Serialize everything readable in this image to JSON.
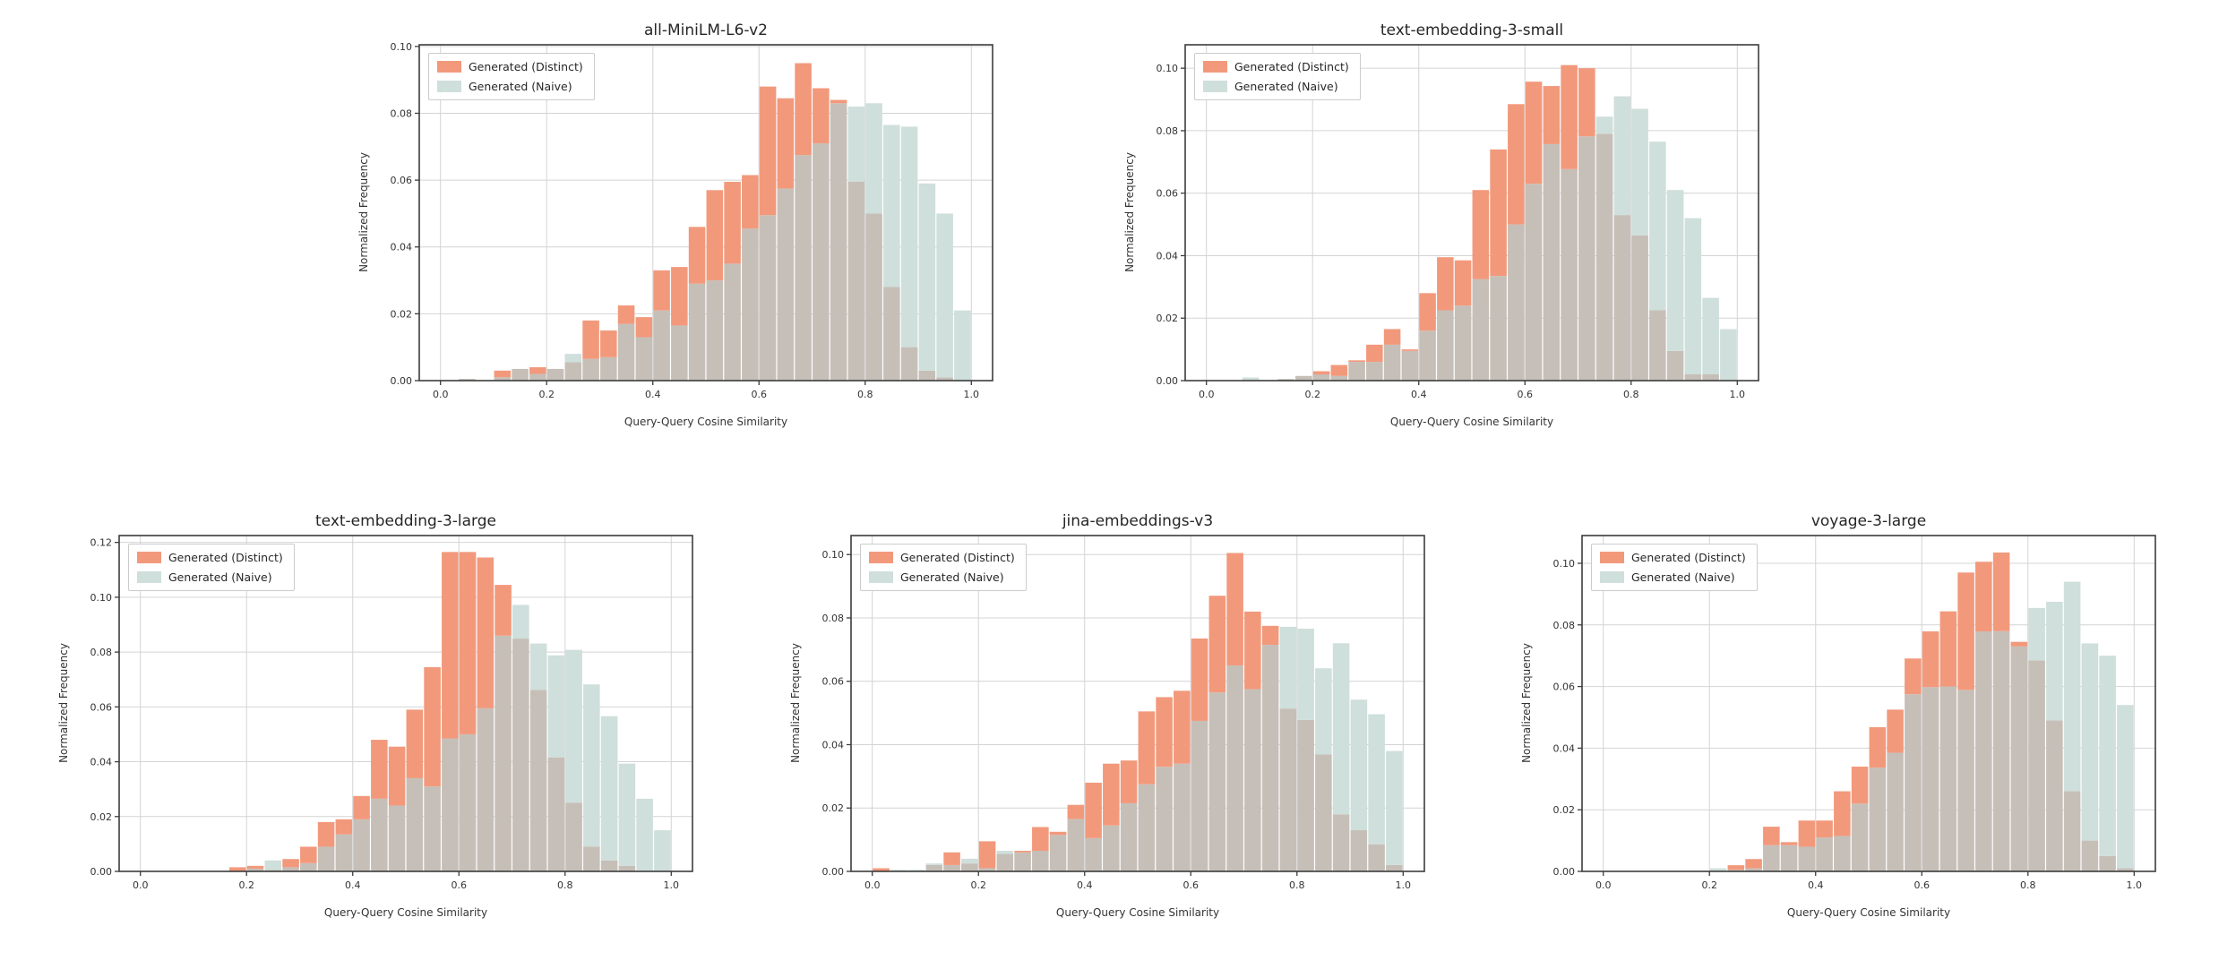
{
  "figure": {
    "xlabel": "Query-Query Cosine Similarity",
    "ylabel": "Normalized Frequency",
    "legend_distinct": "Generated (Distinct)",
    "legend_naive": "Generated (Naive)"
  },
  "colors": {
    "distinct_fill": "#f2997c",
    "naive_fill": "#cfdfdb",
    "overlap_fill": "#c6bfb8",
    "grid": "#d4d4d4",
    "border": "#3c3c3c",
    "tick_text": "#333333",
    "background": "#ffffff"
  },
  "chart_data": [
    {
      "type": "bar",
      "subtype": "overlaid-histogram",
      "title": "all-MiniLM-L6-v2",
      "xlabel": "Query-Query Cosine Similarity",
      "ylabel": "Normalized Frequency",
      "legend": [
        "Generated (Distinct)",
        "Generated (Naive)"
      ],
      "legend_position": "upper left",
      "grid": true,
      "bin_start": 0.0,
      "bin_width": 0.03333,
      "xlim": [
        -0.04,
        1.04
      ],
      "ylim": [
        0,
        0.1005
      ],
      "x_ticks": [
        0.0,
        0.2,
        0.4,
        0.6,
        0.8,
        1.0
      ],
      "y_ticks": [
        0.0,
        0.02,
        0.04,
        0.06,
        0.08,
        0.1
      ],
      "series": [
        {
          "name": "Generated (Distinct)",
          "values": [
            0,
            0.0005,
            0,
            0.003,
            0.0035,
            0.004,
            0.0035,
            0.0055,
            0.018,
            0.015,
            0.0225,
            0.019,
            0.033,
            0.034,
            0.046,
            0.057,
            0.0595,
            0.0615,
            0.088,
            0.0845,
            0.095,
            0.0875,
            0.084,
            0.0595,
            0.05,
            0.028,
            0.01,
            0.003,
            0.001,
            0
          ]
        },
        {
          "name": "Generated (Naive)",
          "values": [
            0,
            0.0005,
            0,
            0.001,
            0.0035,
            0.002,
            0.0035,
            0.008,
            0.0065,
            0.007,
            0.017,
            0.013,
            0.021,
            0.0165,
            0.029,
            0.03,
            0.035,
            0.0455,
            0.0495,
            0.0575,
            0.0675,
            0.071,
            0.083,
            0.082,
            0.083,
            0.0765,
            0.076,
            0.059,
            0.05,
            0.021
          ]
        }
      ]
    },
    {
      "type": "bar",
      "subtype": "overlaid-histogram",
      "title": "text-embedding-3-small",
      "xlabel": "Query-Query Cosine Similarity",
      "ylabel": "Normalized Frequency",
      "legend": [
        "Generated (Distinct)",
        "Generated (Naive)"
      ],
      "legend_position": "upper left",
      "grid": true,
      "bin_start": 0.0,
      "bin_width": 0.03333,
      "xlim": [
        -0.04,
        1.04
      ],
      "ylim": [
        0,
        0.1075
      ],
      "x_ticks": [
        0.0,
        0.2,
        0.4,
        0.6,
        0.8,
        1.0
      ],
      "y_ticks": [
        0.0,
        0.02,
        0.04,
        0.06,
        0.08,
        0.1
      ],
      "series": [
        {
          "name": "Generated (Distinct)",
          "values": [
            0,
            0,
            0,
            0,
            0.0005,
            0.0015,
            0.003,
            0.005,
            0.0065,
            0.0115,
            0.0165,
            0.01,
            0.028,
            0.0395,
            0.0385,
            0.061,
            0.074,
            0.0885,
            0.0957,
            0.0943,
            0.101,
            0.1,
            0.079,
            0.053,
            0.0465,
            0.0225,
            0.0095,
            0.002,
            0.002,
            0
          ]
        },
        {
          "name": "Generated (Naive)",
          "values": [
            0,
            0,
            0.001,
            0,
            0.0005,
            0.0015,
            0.002,
            0.0015,
            0.006,
            0.006,
            0.0115,
            0.0095,
            0.016,
            0.0225,
            0.024,
            0.0325,
            0.0335,
            0.05,
            0.063,
            0.0757,
            0.0677,
            0.0782,
            0.0845,
            0.091,
            0.087,
            0.0765,
            0.061,
            0.052,
            0.0265,
            0.0165
          ]
        }
      ]
    },
    {
      "type": "bar",
      "subtype": "overlaid-histogram",
      "title": "text-embedding-3-large",
      "xlabel": "Query-Query Cosine Similarity",
      "ylabel": "Normalized Frequency",
      "legend": [
        "Generated (Distinct)",
        "Generated (Naive)"
      ],
      "legend_position": "upper left",
      "grid": true,
      "bin_start": 0.0,
      "bin_width": 0.03333,
      "xlim": [
        -0.04,
        1.04
      ],
      "ylim": [
        0,
        0.1225
      ],
      "x_ticks": [
        0.0,
        0.2,
        0.4,
        0.6,
        0.8,
        1.0
      ],
      "y_ticks": [
        0.0,
        0.02,
        0.04,
        0.06,
        0.08,
        0.1,
        0.12
      ],
      "series": [
        {
          "name": "Generated (Distinct)",
          "values": [
            0,
            0,
            0,
            0,
            0,
            0.0015,
            0.002,
            0.0005,
            0.0045,
            0.009,
            0.018,
            0.019,
            0.0275,
            0.048,
            0.0455,
            0.059,
            0.0745,
            0.1165,
            0.1165,
            0.1145,
            0.1045,
            0.0849,
            0.0662,
            0.0416,
            0.025,
            0.009,
            0.004,
            0.002,
            0,
            0
          ]
        },
        {
          "name": "Generated (Naive)",
          "values": [
            0,
            0,
            0,
            0,
            0,
            0,
            0.001,
            0.004,
            0.0015,
            0.003,
            0.009,
            0.0135,
            0.019,
            0.0265,
            0.024,
            0.034,
            0.031,
            0.0485,
            0.05,
            0.0595,
            0.086,
            0.0972,
            0.0831,
            0.0788,
            0.0808,
            0.0682,
            0.0566,
            0.0393,
            0.0265,
            0.015
          ]
        }
      ]
    },
    {
      "type": "bar",
      "subtype": "overlaid-histogram",
      "title": "jina-embeddings-v3",
      "xlabel": "Query-Query Cosine Similarity",
      "ylabel": "Normalized Frequency",
      "legend": [
        "Generated (Distinct)",
        "Generated (Naive)"
      ],
      "legend_position": "upper left",
      "grid": true,
      "bin_start": 0.0,
      "bin_width": 0.03333,
      "xlim": [
        -0.04,
        1.04
      ],
      "ylim": [
        0,
        0.106
      ],
      "x_ticks": [
        0.0,
        0.2,
        0.4,
        0.6,
        0.8,
        1.0
      ],
      "y_ticks": [
        0.0,
        0.02,
        0.04,
        0.06,
        0.08,
        0.1
      ],
      "series": [
        {
          "name": "Generated (Distinct)",
          "values": [
            0.001,
            0,
            0,
            0.002,
            0.006,
            0.0025,
            0.0095,
            0.0055,
            0.0065,
            0.014,
            0.0125,
            0.021,
            0.028,
            0.034,
            0.035,
            0.0505,
            0.055,
            0.057,
            0.0735,
            0.087,
            0.1005,
            0.082,
            0.0775,
            0.0514,
            0.0478,
            0.0369,
            0.018,
            0.013,
            0.0085,
            0.002
          ]
        },
        {
          "name": "Generated (Naive)",
          "values": [
            0,
            0.0005,
            0.0005,
            0.0025,
            0.002,
            0.004,
            0.001,
            0.0065,
            0.006,
            0.0065,
            0.0115,
            0.0165,
            0.0105,
            0.0145,
            0.0215,
            0.0275,
            0.033,
            0.034,
            0.0475,
            0.0565,
            0.065,
            0.0575,
            0.0715,
            0.0772,
            0.0766,
            0.0641,
            0.072,
            0.0542,
            0.0496,
            0.038
          ]
        }
      ]
    },
    {
      "type": "bar",
      "subtype": "overlaid-histogram",
      "title": "voyage-3-large",
      "xlabel": "Query-Query Cosine Similarity",
      "ylabel": "Normalized Frequency",
      "legend": [
        "Generated (Distinct)",
        "Generated (Naive)"
      ],
      "legend_position": "upper left",
      "grid": true,
      "bin_start": 0.0,
      "bin_width": 0.03333,
      "xlim": [
        -0.04,
        1.04
      ],
      "ylim": [
        0,
        0.109
      ],
      "x_ticks": [
        0.0,
        0.2,
        0.4,
        0.6,
        0.8,
        1.0
      ],
      "y_ticks": [
        0.0,
        0.02,
        0.04,
        0.06,
        0.08,
        0.1
      ],
      "series": [
        {
          "name": "Generated (Distinct)",
          "values": [
            0,
            0,
            0,
            0,
            0,
            0,
            0,
            0.002,
            0.004,
            0.0145,
            0.0095,
            0.0165,
            0.0165,
            0.026,
            0.034,
            0.0468,
            0.0525,
            0.0691,
            0.0779,
            0.0844,
            0.097,
            0.1005,
            0.1035,
            0.0745,
            0.0685,
            0.049,
            0.026,
            0.01,
            0.005,
            0.001
          ]
        },
        {
          "name": "Generated (Naive)",
          "values": [
            0,
            0,
            0,
            0,
            0,
            0,
            0.001,
            0.0005,
            0.001,
            0.0085,
            0.0085,
            0.008,
            0.011,
            0.0115,
            0.022,
            0.0337,
            0.0385,
            0.0575,
            0.0598,
            0.06,
            0.0589,
            0.0779,
            0.078,
            0.073,
            0.0855,
            0.0875,
            0.094,
            0.074,
            0.07,
            0.054
          ]
        }
      ]
    }
  ]
}
